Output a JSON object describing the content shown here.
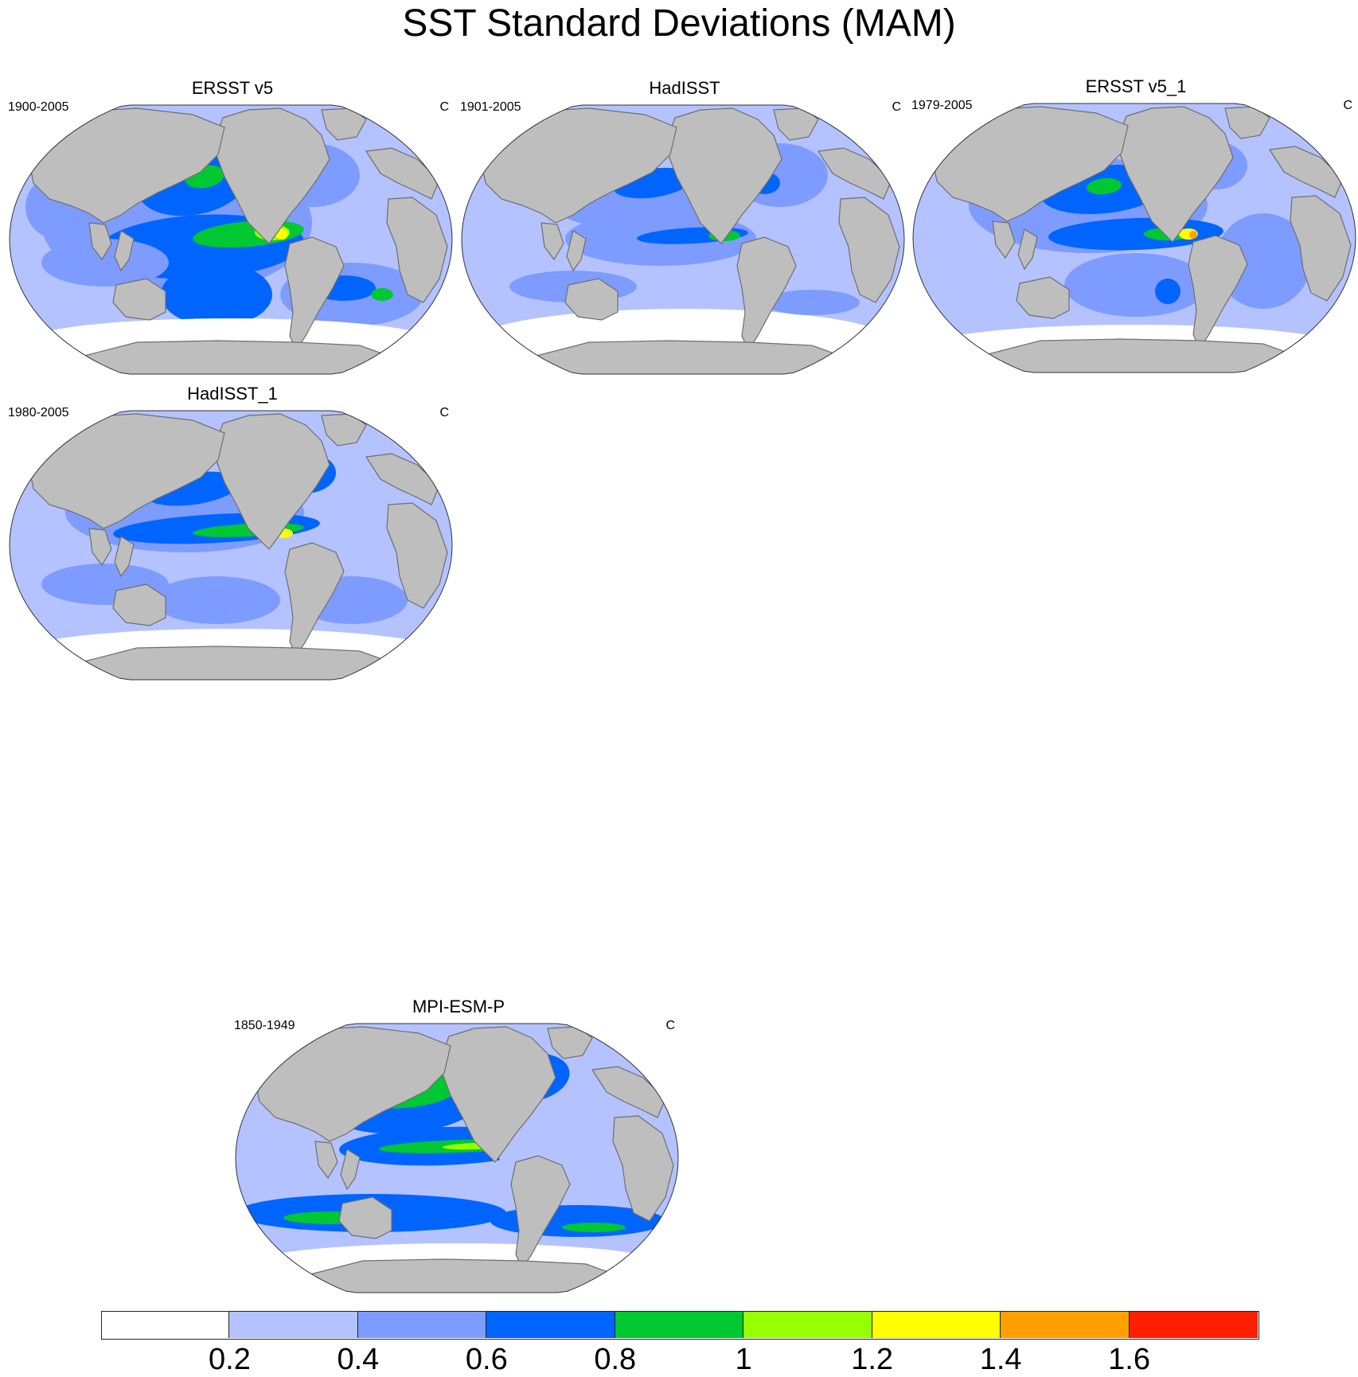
{
  "title": "SST Standard Deviations (MAM)",
  "colors": {
    "land": "#bebebe",
    "coast": "#6e6e6e",
    "levels": [
      "#ffffff",
      "#b4c3ff",
      "#7e9cff",
      "#0064ff",
      "#00c832",
      "#96ff00",
      "#ffff00",
      "#ffa000",
      "#ff1e00"
    ]
  },
  "panels": [
    {
      "name": "ERSST v5",
      "period": "1900-2005",
      "units": "C"
    },
    {
      "name": "HadISST",
      "period": "1901-2005",
      "units": "C"
    },
    {
      "name": "ERSST v5_1",
      "period": "1979-2005",
      "units": "C"
    },
    {
      "name": "HadISST_1",
      "period": "1980-2005",
      "units": "C"
    },
    {
      "name": "MPI-ESM-P",
      "period": "1850-1949",
      "units": "C"
    }
  ],
  "colorbar": {
    "labels": [
      "0.2",
      "0.4",
      "0.6",
      "0.8",
      "1",
      "1.2",
      "1.4",
      "1.6"
    ]
  }
}
